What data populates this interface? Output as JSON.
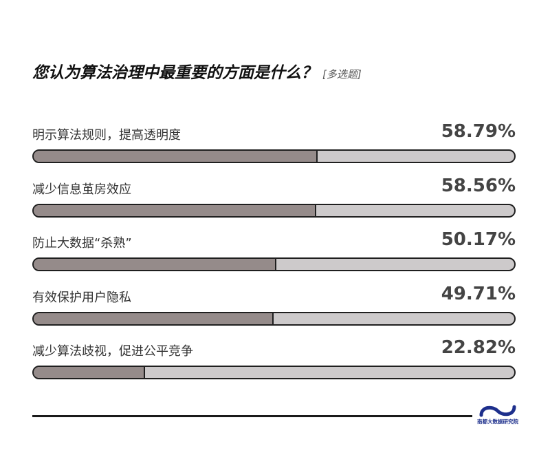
{
  "title": "您认为算法治理中最重要的方面是什么？",
  "tag": "[多选题]",
  "chart_data": {
    "type": "bar",
    "orientation": "horizontal",
    "categories": [
      "明示算法规则，提高透明度",
      "减少信息茧房效应",
      "防止大数据“杀熟”",
      "有效保护用户隐私",
      "减少算法歧视，促进公平竞争"
    ],
    "values": [
      58.79,
      58.56,
      50.17,
      49.71,
      22.82
    ],
    "value_labels": [
      "58.79%",
      "58.56%",
      "50.17%",
      "49.71%",
      "22.82%"
    ],
    "xlim": [
      0,
      100
    ],
    "grid": false,
    "legend": "none"
  },
  "colors": {
    "fill": "#958b8a",
    "track": "#cdcacb",
    "outline": "#1f1f1f",
    "logo": "#1d2f8c"
  },
  "logo": {
    "text": "南都大数据研究院",
    "icon": "wave-logo-icon"
  }
}
